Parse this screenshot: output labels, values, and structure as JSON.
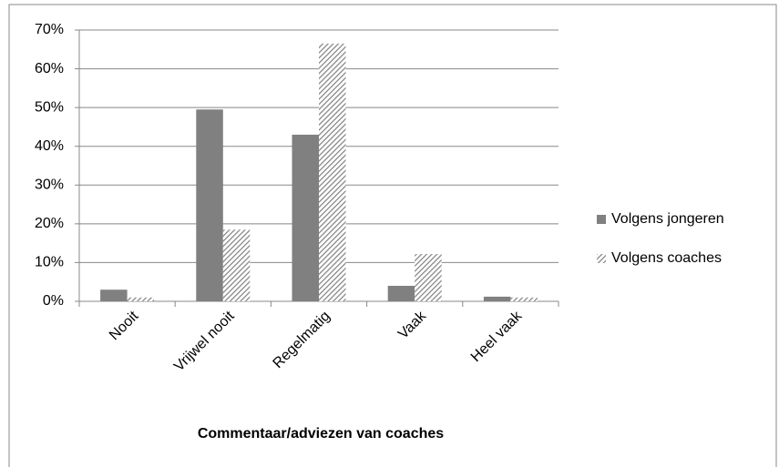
{
  "chart_data": {
    "type": "bar",
    "x_label": "Commentaar/adviezen van coaches",
    "categories": [
      "Nooit",
      "Vrijwel nooit",
      "Regelmatig",
      "Vaak",
      "Heel vaak"
    ],
    "series": [
      {
        "name": "Volgens jongeren",
        "color": "#808080",
        "values": [
          3,
          49.5,
          43,
          4,
          1.2
        ]
      },
      {
        "name": "Volgens coaches",
        "color": "#808080",
        "pattern": "diagonal-hatch",
        "values": [
          1,
          18.5,
          66.5,
          12.2,
          1
        ]
      }
    ],
    "ylim": [
      0,
      70
    ],
    "yticks": [
      {
        "value": 0,
        "label": "0%"
      },
      {
        "value": 10,
        "label": "10%"
      },
      {
        "value": 20,
        "label": "20%"
      },
      {
        "value": 30,
        "label": "30%"
      },
      {
        "value": 40,
        "label": "40%"
      },
      {
        "value": 50,
        "label": "50%"
      },
      {
        "value": 60,
        "label": "60%"
      },
      {
        "value": 70,
        "label": "70%"
      }
    ],
    "grid": true,
    "legend": "right"
  }
}
